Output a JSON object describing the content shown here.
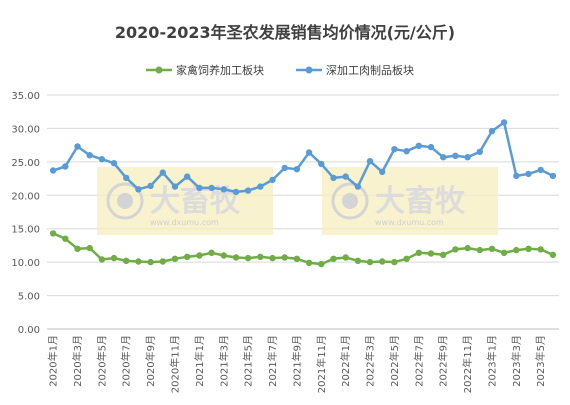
{
  "chart_data": {
    "type": "line",
    "title": "2020-2023年圣农发展销售均价情况(元/公斤)",
    "xlabel": "",
    "ylabel": "",
    "ylim": [
      0,
      35
    ],
    "yticks": [
      "0.00",
      "5.00",
      "10.00",
      "15.00",
      "20.00",
      "25.00",
      "30.00",
      "35.00"
    ],
    "grid": true,
    "legend_position": "top",
    "x": [
      "2020年1月",
      "2020年2月",
      "2020年3月",
      "2020年4月",
      "2020年5月",
      "2020年6月",
      "2020年7月",
      "2020年8月",
      "2020年9月",
      "2020年10月",
      "2020年11月",
      "2020年12月",
      "2021年1月",
      "2021年2月",
      "2021年3月",
      "2021年4月",
      "2021年5月",
      "2021年6月",
      "2021年7月",
      "2021年8月",
      "2021年9月",
      "2021年10月",
      "2021年11月",
      "2021年12月",
      "2022年1月",
      "2022年2月",
      "2022年3月",
      "2022年4月",
      "2022年5月",
      "2022年6月",
      "2022年7月",
      "2022年8月",
      "2022年9月",
      "2022年10月",
      "2022年11月",
      "2022年12月",
      "2023年1月",
      "2023年2月",
      "2023年3月",
      "2023年4月",
      "2023年5月",
      "2023年6月"
    ],
    "xtick_labels": [
      "2020年1月",
      "",
      "2020年3月",
      "",
      "2020年5月",
      "",
      "2020年7月",
      "",
      "2020年9月",
      "",
      "2020年11月",
      "",
      "2021年1月",
      "",
      "2021年3月",
      "",
      "2021年5月",
      "",
      "2021年7月",
      "",
      "2021年9月",
      "",
      "2021年11月",
      "",
      "2022年1月",
      "",
      "2022年3月",
      "",
      "2022年5月",
      "",
      "2022年7月",
      "",
      "2022年9月",
      "",
      "2022年11月",
      "",
      "2023年1月",
      "",
      "2023年3月",
      "",
      "2023年5月",
      ""
    ],
    "series": [
      {
        "name": "家禽饲养加工板块",
        "color": "#70ad47",
        "values": [
          14.3,
          13.5,
          12.0,
          12.1,
          10.4,
          10.6,
          10.2,
          10.1,
          10.0,
          10.1,
          10.5,
          10.8,
          11.0,
          11.4,
          11.0,
          10.7,
          10.6,
          10.8,
          10.6,
          10.7,
          10.5,
          9.9,
          9.7,
          10.5,
          10.7,
          10.2,
          10.0,
          10.1,
          10.0,
          10.5,
          11.4,
          11.3,
          11.1,
          11.9,
          12.1,
          11.8,
          12.0,
          11.4,
          11.8,
          12.0,
          11.9,
          11.1
        ]
      },
      {
        "name": "深加工肉制品板块",
        "color": "#5b9bd5",
        "values": [
          23.7,
          24.3,
          27.3,
          26.0,
          25.4,
          24.8,
          22.6,
          20.9,
          21.4,
          23.4,
          21.3,
          22.8,
          21.1,
          21.1,
          20.9,
          20.5,
          20.7,
          21.3,
          22.3,
          24.1,
          23.9,
          26.4,
          24.7,
          22.6,
          22.8,
          21.3,
          25.1,
          23.5,
          26.9,
          26.6,
          27.4,
          27.2,
          25.7,
          25.9,
          25.7,
          26.5,
          29.6,
          30.9,
          22.9,
          23.2,
          23.8,
          22.9
        ]
      }
    ]
  },
  "watermark": {
    "brand": "大畜牧",
    "url": "www.dxumu.com"
  }
}
